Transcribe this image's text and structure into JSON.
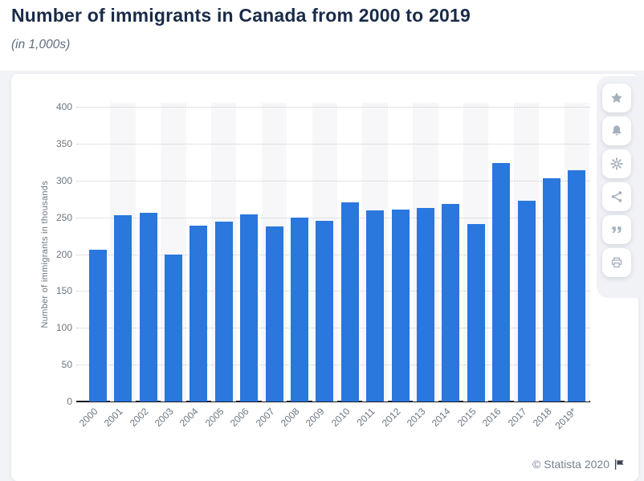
{
  "header": {
    "title": "Number of immigrants in Canada from 2000 to 2019",
    "subtitle": "(in 1,000s)"
  },
  "chart_data": {
    "type": "bar",
    "title": "Number of immigrants in Canada from 2000 to 2019",
    "subtitle": "(in 1,000s)",
    "categories": [
      "2000",
      "2001",
      "2002",
      "2003",
      "2004",
      "2005",
      "2006",
      "2007",
      "2008",
      "2009",
      "2010",
      "2011",
      "2012",
      "2013",
      "2014",
      "2015",
      "2016",
      "2017",
      "2018",
      "2019*"
    ],
    "values": [
      205.7,
      252.5,
      256.4,
      199.2,
      239.1,
      244.6,
      254.4,
      238.1,
      249.6,
      245.3,
      270.6,
      259.0,
      260.1,
      263.1,
      267.9,
      240.8,
      323.2,
      272.7,
      303.3,
      313.6
    ],
    "xlabel": "",
    "ylabel": "Number of immigrants in thousands",
    "ylim": [
      0,
      400
    ],
    "yticks": [
      0,
      50,
      100,
      150,
      200,
      250,
      300,
      350,
      400
    ],
    "grid": "horizontal-dotted",
    "legend": "none",
    "bar_color": "#2a77dd",
    "column_band_color": "#f7f7f9"
  },
  "toolbar": {
    "buttons": [
      {
        "name": "favorite",
        "icon": "star-icon"
      },
      {
        "name": "notifications",
        "icon": "bell-icon"
      },
      {
        "name": "settings",
        "icon": "gear-icon"
      },
      {
        "name": "share",
        "icon": "share-icon"
      },
      {
        "name": "cite",
        "icon": "quote-icon"
      },
      {
        "name": "print",
        "icon": "printer-icon"
      }
    ]
  },
  "footer": {
    "copyright": "© Statista 2020"
  },
  "colors": {
    "accent": "#2a77dd",
    "title_text": "#1a2b49",
    "subtitle_text": "#5f6d7e",
    "axis_text": "#6b7680",
    "axis_line": "#171a1f",
    "gridline": "#c9c9c9",
    "page_bg": "#f1f3f6",
    "card_bg": "#ffffff",
    "icon": "#a6b0bd",
    "copyright_text": "#76818f"
  }
}
